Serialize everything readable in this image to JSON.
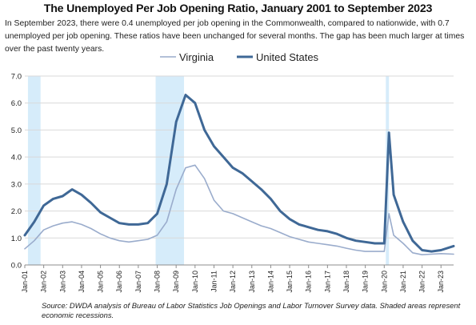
{
  "chart_data": {
    "type": "line",
    "title": "The Unemployed Per Job Opening Ratio, January 2001 to September 2023",
    "subtitle": "In September 2023, there were 0.4 unemployed per job opening in the Commonwealth, compared to nationwide, with 0.7 unemployed per job opening. These ratios have been unchanged for several months. The gap has been much larger at times over the past twenty years.",
    "note": "Source: DWDA analysis of Bureau of Labor Statistics Job Openings and Labor Turnover Survey data. Shaded areas represent economic recessions.",
    "ylim": [
      0,
      7
    ],
    "yticks": [
      "0.0",
      "1.0",
      "2.0",
      "3.0",
      "4.0",
      "5.0",
      "6.0",
      "7.0"
    ],
    "xticks": [
      "Jan-01",
      "Jan-02",
      "Jan-03",
      "Jan-04",
      "Jan-05",
      "Jan-06",
      "Jan-07",
      "Jan-08",
      "Jan-09",
      "Jan-10",
      "Jan-11",
      "Jan-12",
      "Jan-13",
      "Jan-14",
      "Jan-15",
      "Jan-16",
      "Jan-17",
      "Jan-18",
      "Jan-19",
      "Jan-20",
      "Jan-21",
      "Jan-22",
      "Jan-23"
    ],
    "x_range": [
      "Jan-01",
      "Sep-23"
    ],
    "legend_position": "top-center",
    "grid": "horizontal",
    "recessions": [
      {
        "start": "Mar-01",
        "end": "Nov-01"
      },
      {
        "start": "Dec-07",
        "end": "Jun-09"
      },
      {
        "start": "Feb-20",
        "end": "Apr-20"
      }
    ],
    "series": [
      {
        "name": "Virginia",
        "color": "#9aaccc",
        "width": 1.6,
        "points": [
          [
            "Jan-01",
            0.6
          ],
          [
            "Jul-01",
            0.9
          ],
          [
            "Jan-02",
            1.3
          ],
          [
            "Jul-02",
            1.45
          ],
          [
            "Jan-03",
            1.55
          ],
          [
            "Jul-03",
            1.6
          ],
          [
            "Jan-04",
            1.5
          ],
          [
            "Jul-04",
            1.35
          ],
          [
            "Jan-05",
            1.15
          ],
          [
            "Jul-05",
            1.0
          ],
          [
            "Jan-06",
            0.9
          ],
          [
            "Jul-06",
            0.85
          ],
          [
            "Jan-07",
            0.9
          ],
          [
            "Jul-07",
            0.95
          ],
          [
            "Jan-08",
            1.1
          ],
          [
            "Jul-08",
            1.6
          ],
          [
            "Jan-09",
            2.8
          ],
          [
            "Jul-09",
            3.6
          ],
          [
            "Jan-10",
            3.7
          ],
          [
            "Jul-10",
            3.2
          ],
          [
            "Jan-11",
            2.4
          ],
          [
            "Jul-11",
            2.0
          ],
          [
            "Jan-12",
            1.9
          ],
          [
            "Jul-12",
            1.75
          ],
          [
            "Jan-13",
            1.6
          ],
          [
            "Jul-13",
            1.45
          ],
          [
            "Jan-14",
            1.35
          ],
          [
            "Jul-14",
            1.2
          ],
          [
            "Jan-15",
            1.05
          ],
          [
            "Jul-15",
            0.95
          ],
          [
            "Jan-16",
            0.85
          ],
          [
            "Jul-16",
            0.8
          ],
          [
            "Jan-17",
            0.75
          ],
          [
            "Jul-17",
            0.7
          ],
          [
            "Jan-18",
            0.62
          ],
          [
            "Jul-18",
            0.55
          ],
          [
            "Jan-19",
            0.5
          ],
          [
            "Jul-19",
            0.5
          ],
          [
            "Jan-20",
            0.5
          ],
          [
            "Apr-20",
            1.9
          ],
          [
            "Jul-20",
            1.1
          ],
          [
            "Jan-21",
            0.8
          ],
          [
            "Jul-21",
            0.45
          ],
          [
            "Jan-22",
            0.38
          ],
          [
            "Jul-22",
            0.4
          ],
          [
            "Jan-23",
            0.42
          ],
          [
            "Sep-23",
            0.4
          ]
        ]
      },
      {
        "name": "United States",
        "color": "#3f6896",
        "width": 3,
        "points": [
          [
            "Jan-01",
            1.1
          ],
          [
            "Jul-01",
            1.6
          ],
          [
            "Jan-02",
            2.2
          ],
          [
            "Jul-02",
            2.45
          ],
          [
            "Jan-03",
            2.55
          ],
          [
            "Jul-03",
            2.8
          ],
          [
            "Jan-04",
            2.6
          ],
          [
            "Jul-04",
            2.3
          ],
          [
            "Jan-05",
            1.95
          ],
          [
            "Jul-05",
            1.75
          ],
          [
            "Jan-06",
            1.55
          ],
          [
            "Jul-06",
            1.5
          ],
          [
            "Jan-07",
            1.5
          ],
          [
            "Jul-07",
            1.55
          ],
          [
            "Jan-08",
            1.9
          ],
          [
            "Jul-08",
            3.0
          ],
          [
            "Jan-09",
            5.3
          ],
          [
            "Jul-09",
            6.3
          ],
          [
            "Jan-10",
            6.0
          ],
          [
            "Jul-10",
            5.0
          ],
          [
            "Jan-11",
            4.4
          ],
          [
            "Jul-11",
            4.0
          ],
          [
            "Jan-12",
            3.6
          ],
          [
            "Jul-12",
            3.4
          ],
          [
            "Jan-13",
            3.1
          ],
          [
            "Jul-13",
            2.8
          ],
          [
            "Jan-14",
            2.45
          ],
          [
            "Jul-14",
            2.0
          ],
          [
            "Jan-15",
            1.7
          ],
          [
            "Jul-15",
            1.5
          ],
          [
            "Jan-16",
            1.4
          ],
          [
            "Jul-16",
            1.3
          ],
          [
            "Jan-17",
            1.25
          ],
          [
            "Jul-17",
            1.15
          ],
          [
            "Jan-18",
            1.0
          ],
          [
            "Jul-18",
            0.9
          ],
          [
            "Jan-19",
            0.85
          ],
          [
            "Jul-19",
            0.8
          ],
          [
            "Jan-20",
            0.8
          ],
          [
            "Apr-20",
            4.9
          ],
          [
            "Jul-20",
            2.6
          ],
          [
            "Jan-21",
            1.6
          ],
          [
            "Jul-21",
            0.9
          ],
          [
            "Jan-22",
            0.55
          ],
          [
            "Jul-22",
            0.5
          ],
          [
            "Jan-23",
            0.55
          ],
          [
            "Sep-23",
            0.7
          ]
        ]
      }
    ]
  }
}
